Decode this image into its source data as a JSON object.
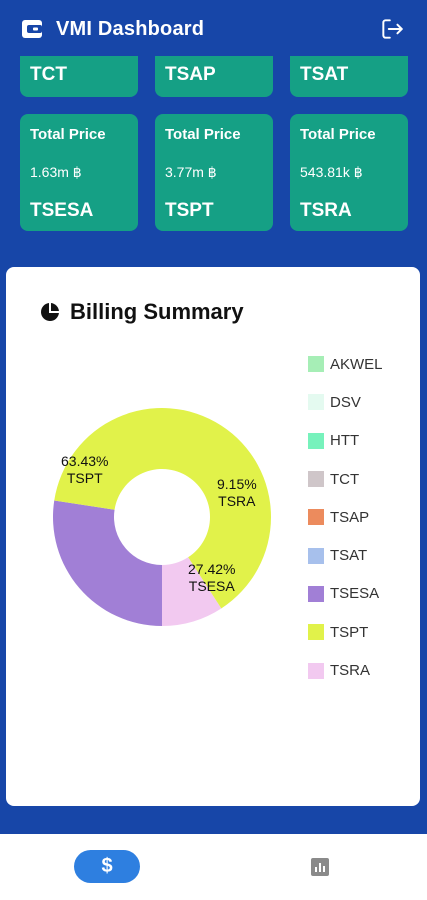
{
  "app_bar": {
    "title": "VMI Dashboard",
    "logo_icon": "wallet-icon",
    "logout_icon": "logout-icon"
  },
  "top_tiles": [
    {
      "code": "TCT"
    },
    {
      "code": "TSAP"
    },
    {
      "code": "TSAT"
    }
  ],
  "price_tiles": [
    {
      "label": "Total Price",
      "price": "1.63m ฿",
      "code": "TSESA"
    },
    {
      "label": "Total Price",
      "price": "3.77m ฿",
      "code": "TSPT"
    },
    {
      "label": "Total Price",
      "price": "543.81k ฿",
      "code": "TSRA"
    }
  ],
  "colors": {
    "background": "#1746a8",
    "tile": "#15a085",
    "nav_active": "#2e7fe0"
  },
  "billing": {
    "icon": "pie-chart-icon",
    "title": "Billing Summary"
  },
  "chart_data": {
    "type": "pie",
    "donut": true,
    "legend_position": "right",
    "categories": [
      "AKWEL",
      "DSV",
      "HTT",
      "TCT",
      "TSAP",
      "TSAT",
      "TSESA",
      "TSPT",
      "TSRA"
    ],
    "colors": [
      "#a6eeb6",
      "#e4faf0",
      "#77f2bc",
      "#cfc6c9",
      "#ec8b5d",
      "#a7c0ec",
      "#a17fd6",
      "#e1f24a",
      "#f2c9f0"
    ],
    "values": [
      0,
      0,
      0,
      0,
      0,
      0,
      27.42,
      63.43,
      9.15
    ],
    "data_labels": [
      {
        "category": "TSPT",
        "percent": "63.43%",
        "name": "TSPT"
      },
      {
        "category": "TSRA",
        "percent": "9.15%",
        "name": "TSRA"
      },
      {
        "category": "TSESA",
        "percent": "27.42%",
        "name": "TSESA"
      }
    ]
  },
  "bottom_nav": {
    "active_label": "$",
    "active_icon": "dollar-icon",
    "other_icon": "bar-chart-icon"
  }
}
